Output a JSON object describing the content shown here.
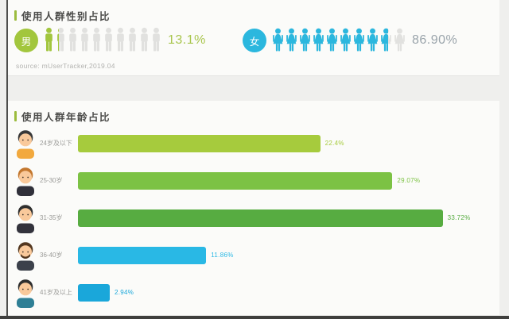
{
  "chart_data": [
    {
      "type": "pictogram",
      "title": "使用人群性别占比",
      "source": "source:  mUserTracker,2019.04",
      "icons_per_group": 10,
      "inactive_icon_color": "#e1e1df",
      "accent_color": "#9cbc3e",
      "series": [
        {
          "name": "男",
          "value": 13.1,
          "label": "13.1%",
          "color": "#a2c63d",
          "label_color": "#a8c54d",
          "icon": "male"
        },
        {
          "name": "女",
          "value": 86.9,
          "label": "86.90%",
          "color": "#2bb7de",
          "label_color": "#9aa4ab",
          "icon": "female"
        }
      ]
    },
    {
      "type": "bar",
      "title": "使用人群年龄占比",
      "orientation": "horizontal",
      "accent_color": "#9cbc3e",
      "xlim": [
        0,
        35
      ],
      "categories": [
        "24岁及以下",
        "25-30岁",
        "31-35岁",
        "36-40岁",
        "41岁及以上"
      ],
      "values": [
        22.4,
        29.07,
        33.72,
        11.86,
        2.94
      ],
      "labels": [
        "22.4%",
        "29.07%",
        "33.72%",
        "11.86%",
        "2.94%"
      ],
      "bar_colors": [
        "#a6cb3d",
        "#7cc244",
        "#57ac41",
        "#29b8e5",
        "#1aa7da"
      ],
      "avatars": [
        {
          "desc": "child-black-hair-orange-shirt",
          "hair": "#383838",
          "skin": "#f9c99b",
          "body": "#f2a93e",
          "beard": false
        },
        {
          "desc": "man-orange-hair-black-suit",
          "hair": "#c3772e",
          "skin": "#f9c99b",
          "body": "#30303a",
          "beard": false
        },
        {
          "desc": "man-black-hair-black-suit",
          "hair": "#2e2e2e",
          "skin": "#f9c99b",
          "body": "#32323c",
          "beard": false
        },
        {
          "desc": "man-brown-hair-beard-dark-suit",
          "hair": "#53371f",
          "skin": "#f9c99b",
          "body": "#3c414b",
          "beard": true
        },
        {
          "desc": "man-black-hair-teal-shirt",
          "hair": "#2e2e2e",
          "skin": "#f9c99b",
          "body": "#2f7f95",
          "beard": false
        }
      ]
    }
  ]
}
